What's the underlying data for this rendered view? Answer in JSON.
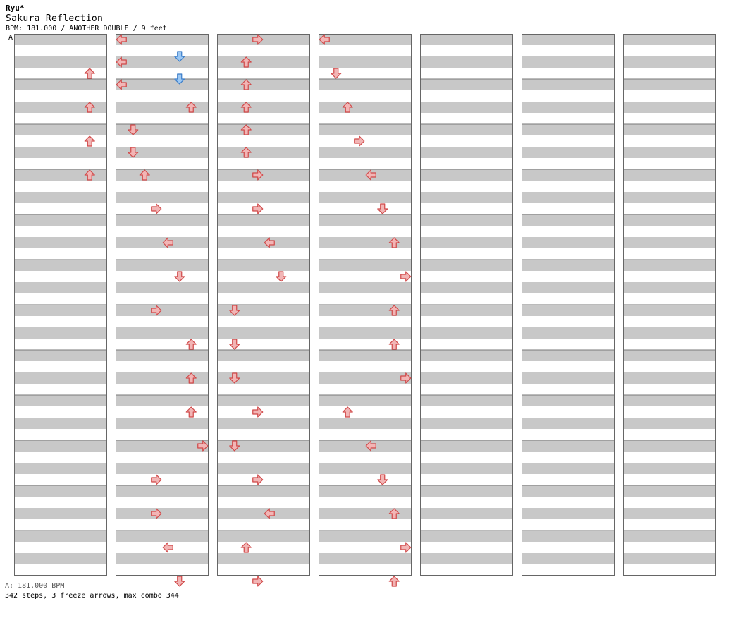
{
  "header": {
    "artist": "Ryu*",
    "title": "Sakura Reflection",
    "info": "BPM: 181.000 / ANOTHER DOUBLE / 9 feet",
    "section_marker": "A"
  },
  "footer": {
    "bpm_label": "A: 181.000 BPM",
    "stats": "342 steps, 3 freeze arrows, max combo 344"
  },
  "chart_data": {
    "type": "step-chart",
    "lanes": 8,
    "rows_per_column": 192,
    "columns": [
      {
        "notes": [
          [
            6,
            6,
            0
          ],
          [
            6,
            12,
            0
          ],
          [
            6,
            18,
            0
          ],
          [
            6,
            24,
            0
          ]
        ]
      },
      {
        "notes": [
          [
            0,
            0,
            0
          ],
          [
            0,
            4,
            0
          ],
          [
            0,
            8,
            0
          ],
          [
            5,
            3,
            1
          ],
          [
            5,
            7,
            1
          ],
          [
            6,
            12,
            0
          ],
          [
            1,
            16,
            0
          ],
          [
            1,
            20,
            0
          ],
          [
            2,
            24,
            0
          ],
          [
            3,
            30,
            0
          ],
          [
            4,
            36,
            0
          ],
          [
            5,
            42,
            0
          ],
          [
            3,
            48,
            0
          ],
          [
            6,
            54,
            0
          ],
          [
            6,
            60,
            0
          ],
          [
            6,
            66,
            0
          ],
          [
            7,
            72,
            0
          ],
          [
            3,
            78,
            0
          ],
          [
            3,
            84,
            0
          ],
          [
            4,
            90,
            0
          ],
          [
            5,
            96,
            0
          ]
        ]
      },
      {
        "notes": [
          [
            3,
            0,
            0
          ],
          [
            2,
            4,
            0
          ],
          [
            2,
            8,
            0
          ],
          [
            2,
            12,
            0
          ],
          [
            2,
            16,
            0
          ],
          [
            2,
            20,
            0
          ],
          [
            3,
            24,
            0
          ],
          [
            3,
            30,
            0
          ],
          [
            4,
            36,
            0
          ],
          [
            5,
            42,
            0
          ],
          [
            1,
            48,
            0
          ],
          [
            1,
            54,
            0
          ],
          [
            1,
            60,
            0
          ],
          [
            3,
            66,
            0
          ],
          [
            1,
            72,
            0
          ],
          [
            3,
            78,
            0
          ],
          [
            4,
            84,
            0
          ],
          [
            2,
            90,
            0
          ],
          [
            3,
            96,
            0
          ]
        ]
      },
      {
        "notes": [
          [
            0,
            0,
            0
          ],
          [
            1,
            6,
            0
          ],
          [
            2,
            12,
            0
          ],
          [
            3,
            18,
            0
          ],
          [
            4,
            24,
            0
          ],
          [
            5,
            30,
            0
          ],
          [
            6,
            36,
            0
          ],
          [
            7,
            42,
            0
          ],
          [
            6,
            48,
            0
          ],
          [
            6,
            54,
            0
          ],
          [
            7,
            60,
            0
          ],
          [
            2,
            66,
            0
          ],
          [
            4,
            72,
            0
          ],
          [
            5,
            78,
            0
          ],
          [
            6,
            84,
            0
          ],
          [
            7,
            90,
            0
          ],
          [
            6,
            96,
            0
          ]
        ]
      }
    ]
  }
}
